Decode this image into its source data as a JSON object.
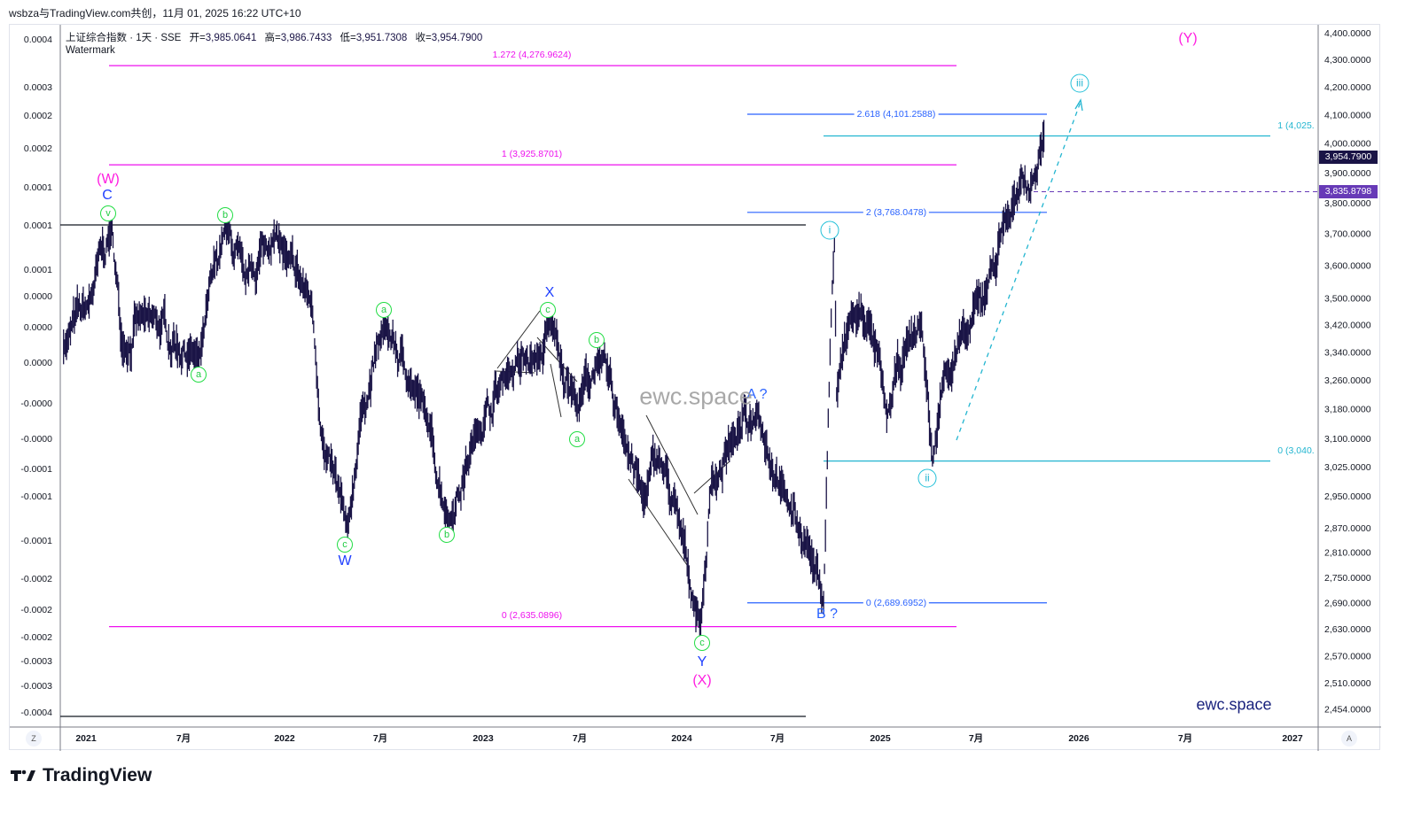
{
  "header": {
    "credit": "wsbza与TradingView.com共创，11月 01, 2025 16:22 UTC+10"
  },
  "legend": {
    "symbol": "上证综合指数 · 1天 · SSE",
    "open_label": "开=",
    "open": "3,985.0641",
    "high_label": "高=",
    "high": "3,986.7433",
    "low_label": "低=",
    "low": "3,951.7308",
    "close_label": "收=",
    "close": "3,954.7900",
    "watermark_label": "Watermark"
  },
  "colors": {
    "price": "#1a1446",
    "magenta": "#ee11ee",
    "blue": "#2962ff",
    "cyan": "#22b5d0",
    "green": "#22cc44",
    "purple": "#673ab7"
  },
  "chart_data": {
    "type": "line",
    "title": "上证综合指数 · 1天 · SSE",
    "scale": "log",
    "ylim": [
      2454,
      4400
    ],
    "xlim": [
      "2020-11",
      "2027-02"
    ],
    "x_ticks": [
      "2021",
      "7月",
      "2022",
      "7月",
      "2023",
      "7月",
      "2024",
      "7月",
      "2025",
      "7月",
      "2026",
      "7月",
      "2027"
    ],
    "y_ticks_right": [
      "4,400.0000",
      "4,300.0000",
      "4,200.0000",
      "4,100.0000",
      "4,000.0000",
      "3,900.0000",
      "3,800.0000",
      "3,700.0000",
      "3,600.0000",
      "3,500.0000",
      "3,420.0000",
      "3,340.0000",
      "3,260.0000",
      "3,180.0000",
      "3,100.0000",
      "3,025.0000",
      "2,950.0000",
      "2,870.0000",
      "2,810.0000",
      "2,750.0000",
      "2,690.0000",
      "2,630.0000",
      "2,570.0000",
      "2,510.0000",
      "2,454.0000"
    ],
    "y_ticks_left": [
      "0.0004",
      "0.0003",
      "0.0002",
      "0.0002",
      "0.0001",
      "0.0001",
      "0.0001",
      "0.0000",
      "0.0000",
      "0.0000",
      "-0.0000",
      "-0.0000",
      "-0.0001",
      "-0.0001",
      "-0.0001",
      "-0.0002",
      "-0.0002",
      "-0.0002",
      "-0.0003",
      "-0.0003",
      "-0.0004"
    ],
    "series": [
      {
        "name": "上证综合指数",
        "points": [
          [
            "2020-11-20",
            3355
          ],
          [
            "2021-01-05",
            3480
          ],
          [
            "2021-02-18",
            3720
          ],
          [
            "2021-03-09",
            3350
          ],
          [
            "2021-04-20",
            3450
          ],
          [
            "2021-07-28",
            3320
          ],
          [
            "2021-09-13",
            3720
          ],
          [
            "2021-10-20",
            3560
          ],
          [
            "2021-12-13",
            3690
          ],
          [
            "2022-01-05",
            3620
          ],
          [
            "2022-02-20",
            3480
          ],
          [
            "2022-03-15",
            3060
          ],
          [
            "2022-04-27",
            2863
          ],
          [
            "2022-05-20",
            3150
          ],
          [
            "2022-07-05",
            3424
          ],
          [
            "2022-08-20",
            3250
          ],
          [
            "2022-09-20",
            3150
          ],
          [
            "2022-10-31",
            2885
          ],
          [
            "2022-12-20",
            3120
          ],
          [
            "2023-02-15",
            3280
          ],
          [
            "2023-04-10",
            3320
          ],
          [
            "2023-05-09",
            3418
          ],
          [
            "2023-06-25",
            3180
          ],
          [
            "2023-07-31",
            3320
          ],
          [
            "2023-09-15",
            3120
          ],
          [
            "2023-10-23",
            2940
          ],
          [
            "2023-11-20",
            3050
          ],
          [
            "2023-12-28",
            2880
          ],
          [
            "2024-02-05",
            2635
          ],
          [
            "2024-02-25",
            2990
          ],
          [
            "2024-04-05",
            3100
          ],
          [
            "2024-05-20",
            3174
          ],
          [
            "2024-07-10",
            2950
          ],
          [
            "2024-08-20",
            2830
          ],
          [
            "2024-09-18",
            2690
          ],
          [
            "2024-09-30",
            3340
          ],
          [
            "2024-10-08",
            3674
          ],
          [
            "2024-10-12",
            3220
          ],
          [
            "2024-11-08",
            3450
          ],
          [
            "2024-12-10",
            3430
          ],
          [
            "2025-01-13",
            3160
          ],
          [
            "2025-02-20",
            3370
          ],
          [
            "2025-03-18",
            3420
          ],
          [
            "2025-04-07",
            3040
          ],
          [
            "2025-04-30",
            3290
          ],
          [
            "2025-06-10",
            3390
          ],
          [
            "2025-07-15",
            3520
          ],
          [
            "2025-08-18",
            3750
          ],
          [
            "2025-09-10",
            3820
          ],
          [
            "2025-10-10",
            3880
          ],
          [
            "2025-10-29",
            4025
          ],
          [
            "2025-10-31",
            3954.79
          ]
        ]
      }
    ],
    "price_tags": {
      "last": "3,954.7900",
      "level": "3,835.8798"
    },
    "fib_levels": [
      {
        "group": "magenta",
        "label": "1.272 (4,276.9624)",
        "value": 4276.9624
      },
      {
        "group": "magenta",
        "label": "1 (3,925.8701)",
        "value": 3925.8701
      },
      {
        "group": "magenta",
        "label": "0 (2,635.0896)",
        "value": 2635.0896
      },
      {
        "group": "blue",
        "label": "2.618 (4,101.2588)",
        "value": 4101.2588
      },
      {
        "group": "blue",
        "label": "2 (3,768.0478)",
        "value": 3768.0478
      },
      {
        "group": "blue",
        "label": "0 (2,689.6952)",
        "value": 2689.6952
      },
      {
        "group": "cyan",
        "label": "1 (4,025.",
        "value": 4025
      },
      {
        "group": "cyan",
        "label": "0 (3,040.",
        "value": 3040
      }
    ],
    "wave_labels": {
      "green": [
        "v",
        "b",
        "a",
        "a",
        "c",
        "b",
        "c",
        "b",
        "a",
        "c"
      ],
      "blue": [
        "C",
        "W",
        "X",
        "Y",
        "A ?",
        "B ?"
      ],
      "magenta": [
        "(W)",
        "(X)",
        "(Y)"
      ],
      "cyan": [
        "i",
        "ii",
        "iii"
      ]
    },
    "watermark": "ewc.space",
    "brand": "ewc.space"
  },
  "footer": {
    "logo": "TradingView",
    "left_btn": "Z",
    "right_btn": "A"
  }
}
